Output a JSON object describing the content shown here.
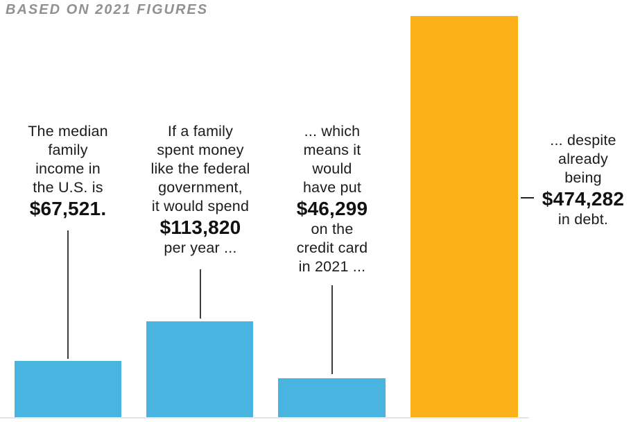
{
  "title": "BASED ON 2021 FIGURES",
  "colors": {
    "bar_blue": "#4ab4e1",
    "bar_orange": "#fbb117",
    "title_gray": "#8f9194",
    "text_dark": "#1b1b1b",
    "connector_gray": "#3d3d3d",
    "baseline_gray": "#e5e5e5"
  },
  "chart_data": {
    "type": "bar",
    "title": "BASED ON 2021 FIGURES",
    "categories": [
      "Median family income in the U.S.",
      "What a family would spend per year if it spent like the federal government",
      "Amount put on the credit card in 2021",
      "Debt already held"
    ],
    "values": [
      67521,
      113820,
      46299,
      474282
    ],
    "value_labels": [
      "$67,521.",
      "$113,820",
      "$46,299",
      "$474,282"
    ],
    "colors": [
      "#4ab4e1",
      "#4ab4e1",
      "#4ab4e1",
      "#fbb117"
    ],
    "unit": "USD",
    "grid": false,
    "axes_hidden": true,
    "legend": false,
    "annotation_position": "above-bars"
  },
  "annotations": [
    {
      "lines_before": [
        "The median",
        "family",
        "income in",
        "the U.S. is"
      ],
      "value": "$67,521.",
      "lines_after": []
    },
    {
      "lines_before": [
        "If a family",
        "spent money",
        "like the federal",
        "government,",
        "it would spend"
      ],
      "value": "$113,820",
      "lines_after": [
        "per year ..."
      ]
    },
    {
      "lines_before": [
        "... which",
        "means it",
        "would",
        "have put"
      ],
      "value": "$46,299",
      "lines_after": [
        "on the",
        "credit card",
        "in 2021 ..."
      ]
    },
    {
      "lines_before": [
        "... despite",
        "already",
        "being"
      ],
      "value": "$474,282",
      "lines_after": [
        "in debt."
      ]
    }
  ]
}
